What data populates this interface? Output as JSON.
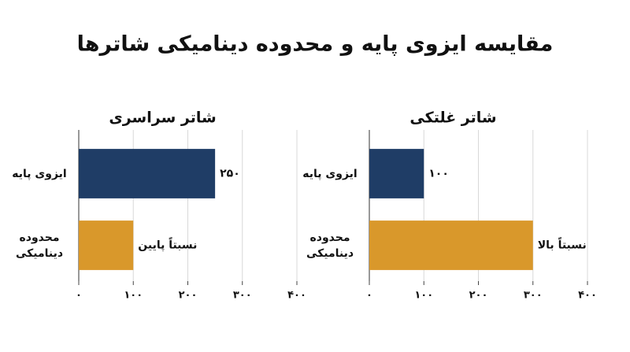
{
  "title": "مقایسه ایزوی پایه و محدوده دینامیکی شاترها",
  "chart_data": [
    {
      "type": "bar",
      "orientation": "horizontal",
      "title": "شاتر سراسری",
      "categories": [
        "ایزوی پایه",
        "محدوده دینامیکی"
      ],
      "values": [
        250,
        100
      ],
      "value_labels": [
        "۲۵۰",
        "نسبتاً پایین"
      ],
      "colors": [
        "#1f3d66",
        "#d9982b"
      ],
      "xlim": [
        0,
        400
      ],
      "xticks": [
        {
          "value": 0,
          "label": "۰"
        },
        {
          "value": 100,
          "label": "۱۰۰"
        },
        {
          "value": 200,
          "label": "۲۰۰"
        },
        {
          "value": 300,
          "label": "۳۰۰"
        },
        {
          "value": 400,
          "label": "۴۰۰"
        }
      ],
      "grid": true
    },
    {
      "type": "bar",
      "orientation": "horizontal",
      "title": "شاتر غلتکی",
      "categories": [
        "ایزوی پایه",
        "محدوده دینامیکی"
      ],
      "values": [
        100,
        300
      ],
      "value_labels": [
        "۱۰۰",
        "نسبتاً بالا"
      ],
      "colors": [
        "#1f3d66",
        "#d9982b"
      ],
      "xlim": [
        0,
        400
      ],
      "xticks": [
        {
          "value": 0,
          "label": "۰"
        },
        {
          "value": 100,
          "label": "۱۰۰"
        },
        {
          "value": 200,
          "label": "۲۰۰"
        },
        {
          "value": 300,
          "label": "۳۰۰"
        },
        {
          "value": 400,
          "label": "۴۰۰"
        }
      ],
      "grid": true
    }
  ]
}
